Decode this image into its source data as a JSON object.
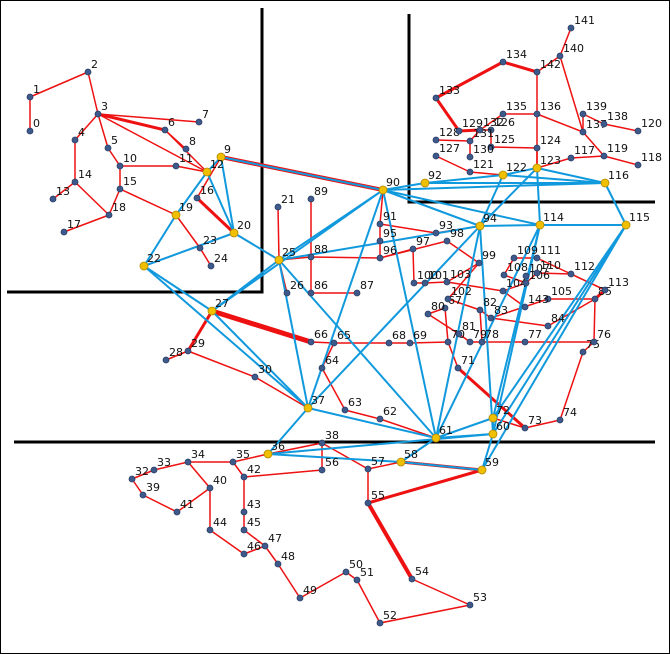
{
  "diagram_title": "",
  "colors": {
    "ac_line": "#ee1111",
    "hvdc_line": "#1199dd",
    "boundary": "#000000",
    "bus": "#3d5a8a",
    "hub": "#f0c000"
  },
  "buses": [
    "0",
    "1",
    "2",
    "3",
    "4",
    "5",
    "6",
    "7",
    "8",
    "9",
    "10",
    "11",
    "12",
    "13",
    "14",
    "15",
    "16",
    "17",
    "18",
    "19",
    "20",
    "21",
    "22",
    "23",
    "24",
    "25",
    "26",
    "27",
    "28",
    "29",
    "30",
    "33",
    "32",
    "34",
    "35",
    "36",
    "37",
    "38",
    "39",
    "40",
    "41",
    "42",
    "43",
    "44",
    "45",
    "46",
    "47",
    "48",
    "49",
    "50",
    "51",
    "52",
    "53",
    "54",
    "55",
    "56",
    "57",
    "58",
    "59",
    "60",
    "61",
    "62",
    "63",
    "64",
    "65",
    "66",
    "67",
    "68",
    "69",
    "70",
    "71",
    "72",
    "73",
    "74",
    "75",
    "76",
    "77",
    "78",
    "79",
    "80",
    "81",
    "82",
    "83",
    "84",
    "85",
    "86",
    "87",
    "88",
    "89",
    "90",
    "91",
    "92",
    "93",
    "94",
    "95",
    "96",
    "97",
    "98",
    "99",
    "100",
    "101",
    "102",
    "103",
    "104",
    "105",
    "106",
    "107",
    "108",
    "109",
    "110",
    "111",
    "112",
    "113",
    "114",
    "115",
    "116",
    "117",
    "118",
    "119",
    "120",
    "121",
    "122",
    "123",
    "124",
    "125",
    "126",
    "127",
    "128",
    "129",
    "130",
    "131",
    "132",
    "133",
    "134",
    "135",
    "136",
    "137",
    "138",
    "139",
    "140",
    "141",
    "142",
    "143"
  ]
}
